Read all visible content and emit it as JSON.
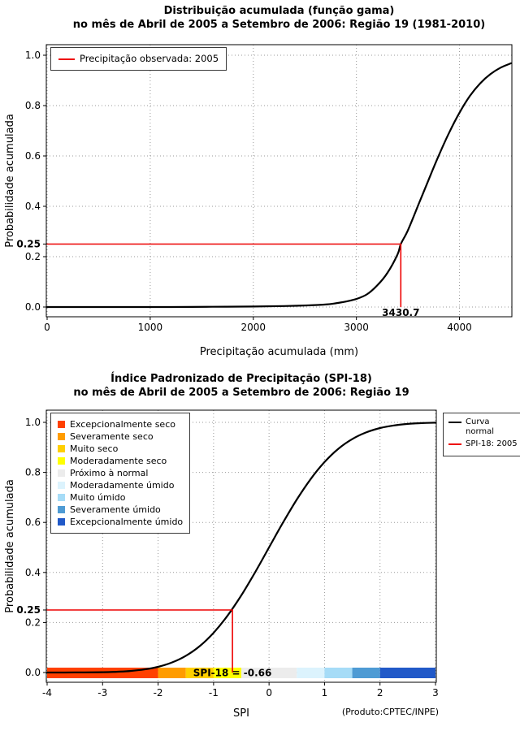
{
  "colors": {
    "background": "#ffffff",
    "curve": "#000000",
    "threshold": "#ee0000",
    "grid": "#999999",
    "plot_border": "#000000",
    "legend_border": "#3a3a3a"
  },
  "chart_data": [
    {
      "type": "line",
      "title": "Distribuição acumulada (função gama)",
      "subtitle": "no mês de Abril de 2005 a Setembro de 2006: Região 19 (1981-2010)",
      "xlabel": "Precipitação acumulada (mm)",
      "ylabel": "Probabilidade acumulada",
      "xlim": [
        0,
        4500
      ],
      "ylim": [
        0,
        1
      ],
      "xticks": [
        0,
        1000,
        2000,
        3000,
        4000
      ],
      "xtick_labels": [
        "0",
        "1000",
        "2000",
        "3000",
        "4000"
      ],
      "yticks": [
        0,
        0.2,
        0.4,
        0.6,
        0.8,
        1
      ],
      "ytick_labels": [
        "0.0",
        "0.2",
        "0.4",
        "0.6",
        "0.8",
        "1.0"
      ],
      "extra_ytick": {
        "value": 0.25,
        "label": "0.25"
      },
      "grid": true,
      "legend": {
        "position": "top-left",
        "entries": [
          {
            "label": "Precipitação observada: 2005",
            "color": "#ee0000"
          }
        ]
      },
      "series": [
        {
          "name": "Distribuição gama acumulada (1981-2010)",
          "color": "#000000",
          "x": [
            0,
            400,
            800,
            1200,
            1600,
            2000,
            2300,
            2500,
            2700,
            2800,
            2900,
            3000,
            3100,
            3200,
            3300,
            3400,
            3430.7,
            3500,
            3600,
            3700,
            3800,
            3900,
            4000,
            4100,
            4200,
            4300,
            4400,
            4500
          ],
          "y": [
            0,
            0,
            0,
            0,
            0.001,
            0.002,
            0.004,
            0.006,
            0.01,
            0.015,
            0.022,
            0.032,
            0.05,
            0.085,
            0.135,
            0.21,
            0.25,
            0.305,
            0.405,
            0.505,
            0.603,
            0.693,
            0.772,
            0.838,
            0.888,
            0.925,
            0.951,
            0.968
          ]
        }
      ],
      "annotation": {
        "x": 3430.7,
        "y": 0.25,
        "label": "3430.7"
      }
    },
    {
      "type": "line",
      "title": "Índice Padronizado de Precipitação (SPI-18)",
      "subtitle": "no mês de Abril de 2005 a Setembro de 2006: Região 19",
      "xlabel": "SPI",
      "ylabel": "Probabilidade acumulada",
      "credit": "(Produto:CPTEC/INPE)",
      "xlim": [
        -4,
        3
      ],
      "ylim": [
        0,
        1
      ],
      "xticks": [
        -4,
        -3,
        -2,
        -1,
        0,
        1,
        2,
        3
      ],
      "xtick_labels": [
        "-4",
        "-3",
        "-2",
        "-1",
        "0",
        "1",
        "2",
        "3"
      ],
      "yticks": [
        0,
        0.2,
        0.4,
        0.6,
        0.8,
        1
      ],
      "ytick_labels": [
        "0.0",
        "0.2",
        "0.4",
        "0.6",
        "0.8",
        "1.0"
      ],
      "extra_ytick": {
        "value": 0.25,
        "label": "0.25"
      },
      "grid": true,
      "category_legend": [
        {
          "label": "Excepcionalmente seco",
          "color": "#ff4000"
        },
        {
          "label": "Severamente seco",
          "color": "#ff9c00"
        },
        {
          "label": "Muito seco",
          "color": "#ffcf00"
        },
        {
          "label": "Moderadamente seco",
          "color": "#ffff00"
        },
        {
          "label": "Próximo à normal",
          "color": "#ececec"
        },
        {
          "label": "Moderadamente úmido",
          "color": "#dcf3fd"
        },
        {
          "label": "Muito úmido",
          "color": "#a6dcf7"
        },
        {
          "label": "Severamente úmido",
          "color": "#4e9bd4"
        },
        {
          "label": "Excepcionalmente úmido",
          "color": "#2159c8"
        }
      ],
      "legend_right": {
        "entries": [
          {
            "label": "Curva\nnormal",
            "color": "#000000"
          },
          {
            "label": "SPI-18: 2005",
            "color": "#ee0000"
          }
        ]
      },
      "category_bar": [
        {
          "from": -4,
          "to": -2,
          "color": "#ff4000"
        },
        {
          "from": -2,
          "to": -1.5,
          "color": "#ff9c00"
        },
        {
          "from": -1.5,
          "to": -1,
          "color": "#ffcf00"
        },
        {
          "from": -1,
          "to": -0.5,
          "color": "#ffff00"
        },
        {
          "from": -0.5,
          "to": 0.5,
          "color": "#ececec"
        },
        {
          "from": 0.5,
          "to": 1,
          "color": "#dcf3fd"
        },
        {
          "from": 1,
          "to": 1.5,
          "color": "#a6dcf7"
        },
        {
          "from": 1.5,
          "to": 2,
          "color": "#4e9bd4"
        },
        {
          "from": 2,
          "to": 3,
          "color": "#2159c8"
        }
      ],
      "series": [
        {
          "name": "Curva normal",
          "color": "#000000",
          "x": [
            -4,
            -3.5,
            -3,
            -2.75,
            -2.5,
            -2.25,
            -2,
            -1.75,
            -1.5,
            -1.25,
            -1,
            -0.75,
            -0.5,
            -0.25,
            0,
            0.25,
            0.5,
            0.75,
            1,
            1.25,
            1.5,
            1.75,
            2,
            2.25,
            2.5,
            2.75,
            3
          ],
          "y": [
            3e-05,
            0.0002,
            0.0013,
            0.003,
            0.0062,
            0.0122,
            0.0228,
            0.0401,
            0.0668,
            0.1056,
            0.1587,
            0.2266,
            0.3085,
            0.4013,
            0.5,
            0.5987,
            0.6915,
            0.7734,
            0.8413,
            0.8944,
            0.9332,
            0.9599,
            0.9772,
            0.9878,
            0.9938,
            0.997,
            0.9987
          ]
        }
      ],
      "annotation": {
        "x": -0.66,
        "y": 0.25,
        "label": "SPI-18 = -0.66"
      }
    }
  ]
}
